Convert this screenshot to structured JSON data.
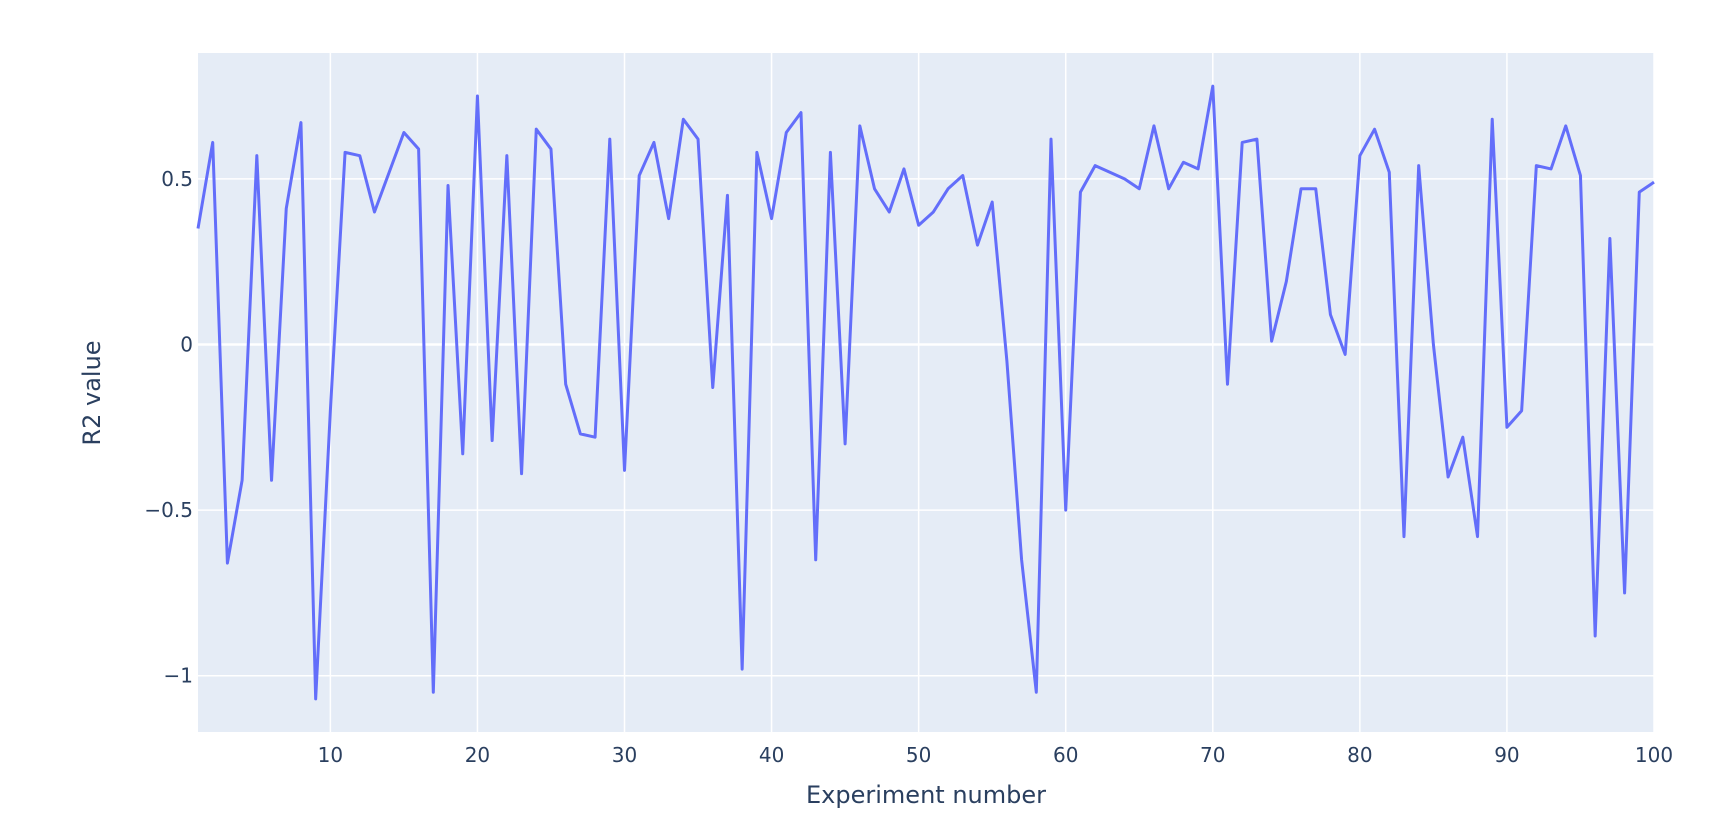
{
  "chart_data": {
    "type": "line",
    "xlabel": "Experiment number",
    "ylabel": "R2 value",
    "xlim": [
      1,
      100
    ],
    "ylim": [
      -1.17,
      0.88
    ],
    "xticks": [
      10,
      20,
      30,
      40,
      50,
      60,
      70,
      80,
      90,
      100
    ],
    "xtick_labels": [
      "10",
      "20",
      "30",
      "40",
      "50",
      "60",
      "70",
      "80",
      "90",
      "100"
    ],
    "yticks": [
      -1,
      -0.5,
      0,
      0.5
    ],
    "ytick_labels": [
      "−1",
      "−0.5",
      "0",
      "0.5"
    ],
    "grid": true,
    "colors": {
      "line": "#636efa",
      "plot_bg": "#e5ecf6",
      "grid": "#ffffff",
      "text": "#2a3f5f"
    },
    "series": [
      {
        "x": [
          1,
          2,
          3,
          4,
          5,
          6,
          7,
          8,
          9,
          10,
          11,
          12,
          13,
          14,
          15,
          16,
          17,
          18,
          19,
          20,
          21,
          22,
          23,
          24,
          25,
          26,
          27,
          28,
          29,
          30,
          31,
          32,
          33,
          34,
          35,
          36,
          37,
          38,
          39,
          40,
          41,
          42,
          43,
          44,
          45,
          46,
          47,
          48,
          49,
          50,
          51,
          52,
          53,
          54,
          55,
          56,
          57,
          58,
          59,
          60,
          61,
          62,
          63,
          64,
          65,
          66,
          67,
          68,
          69,
          70,
          71,
          72,
          73,
          74,
          75,
          76,
          77,
          78,
          79,
          80,
          81,
          82,
          83,
          84,
          85,
          86,
          87,
          88,
          89,
          90,
          91,
          92,
          93,
          94,
          95,
          96,
          97,
          98,
          99,
          100
        ],
        "y": [
          0.35,
          0.61,
          -0.66,
          -0.41,
          0.57,
          -0.41,
          0.41,
          0.67,
          -1.07,
          -0.2,
          0.58,
          0.57,
          0.4,
          0.52,
          0.64,
          0.59,
          -1.05,
          0.48,
          -0.33,
          0.75,
          -0.29,
          0.57,
          -0.39,
          0.65,
          0.59,
          -0.12,
          -0.27,
          -0.28,
          0.62,
          -0.38,
          0.51,
          0.61,
          0.38,
          0.68,
          0.62,
          -0.13,
          0.45,
          -0.98,
          0.58,
          0.38,
          0.64,
          0.7,
          -0.65,
          0.58,
          -0.3,
          0.66,
          0.47,
          0.4,
          0.53,
          0.36,
          0.4,
          0.47,
          0.51,
          0.3,
          0.43,
          -0.05,
          -0.65,
          -1.05,
          0.62,
          -0.5,
          0.46,
          0.54,
          0.52,
          0.5,
          0.47,
          0.66,
          0.47,
          0.55,
          0.53,
          0.78,
          -0.12,
          0.61,
          0.62,
          0.01,
          0.19,
          0.47,
          0.47,
          0.09,
          -0.03,
          0.57,
          0.65,
          0.52,
          -0.58,
          0.54,
          0.0,
          -0.4,
          -0.28,
          -0.58,
          0.68,
          -0.25,
          -0.2,
          0.54,
          0.53,
          0.66,
          0.51,
          -0.88,
          0.32,
          -0.75,
          0.46,
          0.49
        ]
      }
    ]
  }
}
